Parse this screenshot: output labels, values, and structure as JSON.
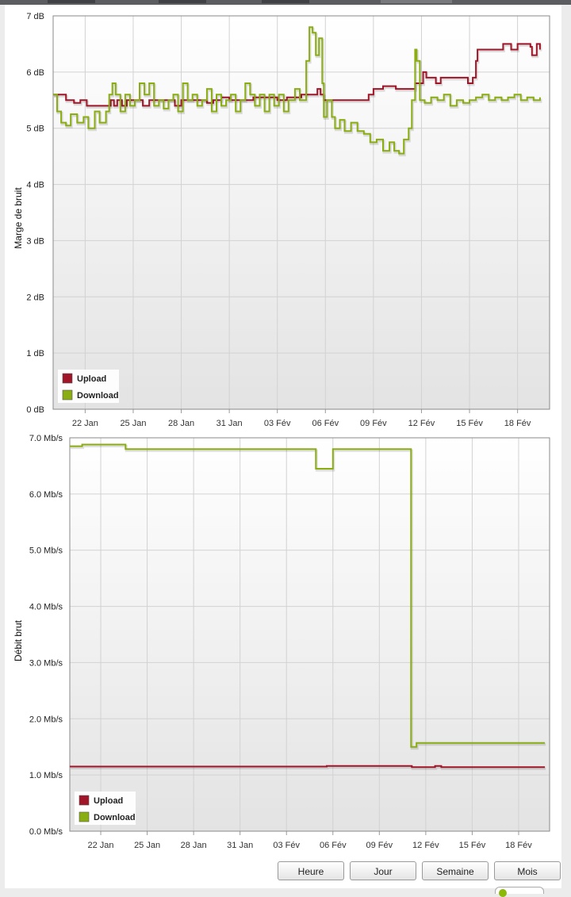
{
  "colors": {
    "upload": "#a01628",
    "download": "#8aad12",
    "grid": "#d2d2d2",
    "plot_border": "#8a8a8a"
  },
  "buttons": {
    "hour": "Heure",
    "day": "Jour",
    "week": "Semaine",
    "month": "Mois"
  },
  "chart_data": [
    {
      "type": "line",
      "ylabel": "Marge de bruit",
      "ylim": [
        0,
        7
      ],
      "yticks": [
        "0 dB",
        "1 dB",
        "2 dB",
        "3 dB",
        "4 dB",
        "5 dB",
        "6 dB",
        "7 dB"
      ],
      "xrange": [
        0,
        31
      ],
      "xticks": [
        {
          "x": 2,
          "label": "22 Jan"
        },
        {
          "x": 5,
          "label": "25 Jan"
        },
        {
          "x": 8,
          "label": "28 Jan"
        },
        {
          "x": 11,
          "label": "31 Jan"
        },
        {
          "x": 14,
          "label": "03 Fév"
        },
        {
          "x": 17,
          "label": "06 Fév"
        },
        {
          "x": 20,
          "label": "09 Fév"
        },
        {
          "x": 23,
          "label": "12 Fév"
        },
        {
          "x": 26,
          "label": "15 Fév"
        },
        {
          "x": 29,
          "label": "18 Fév"
        }
      ],
      "grid": true,
      "legend_position": "bottom-left",
      "series": [
        {
          "name": "Upload",
          "points": [
            [
              0,
              5.6
            ],
            [
              0.7,
              5.6
            ],
            [
              0.8,
              5.5
            ],
            [
              1.2,
              5.5
            ],
            [
              1.3,
              5.45
            ],
            [
              1.6,
              5.45
            ],
            [
              1.7,
              5.5
            ],
            [
              2.0,
              5.5
            ],
            [
              2.1,
              5.4
            ],
            [
              3.5,
              5.4
            ],
            [
              3.6,
              5.5
            ],
            [
              3.8,
              5.4
            ],
            [
              4.0,
              5.5
            ],
            [
              4.3,
              5.4
            ],
            [
              4.6,
              5.5
            ],
            [
              5.5,
              5.5
            ],
            [
              5.6,
              5.4
            ],
            [
              6.0,
              5.5
            ],
            [
              7.5,
              5.5
            ],
            [
              7.6,
              5.4
            ],
            [
              8.0,
              5.5
            ],
            [
              9.5,
              5.5
            ],
            [
              9.6,
              5.45
            ],
            [
              10.0,
              5.5
            ],
            [
              10.5,
              5.55
            ],
            [
              11.0,
              5.5
            ],
            [
              12.5,
              5.55
            ],
            [
              13.5,
              5.55
            ],
            [
              14.0,
              5.5
            ],
            [
              14.6,
              5.55
            ],
            [
              15.5,
              5.6
            ],
            [
              16.5,
              5.7
            ],
            [
              16.7,
              5.6
            ],
            [
              16.9,
              5.5
            ],
            [
              17.0,
              5.5
            ],
            [
              17.1,
              5.5
            ],
            [
              19.5,
              5.5
            ],
            [
              19.7,
              5.6
            ],
            [
              20.0,
              5.7
            ],
            [
              20.5,
              5.7
            ],
            [
              20.6,
              5.75
            ],
            [
              21.2,
              5.75
            ],
            [
              21.4,
              5.7
            ],
            [
              22.5,
              5.7
            ],
            [
              22.6,
              5.8
            ],
            [
              23.0,
              5.8
            ],
            [
              23.1,
              6.0
            ],
            [
              23.3,
              5.9
            ],
            [
              23.5,
              5.9
            ],
            [
              23.7,
              5.9
            ],
            [
              23.9,
              5.8
            ],
            [
              24.2,
              5.9
            ],
            [
              25.8,
              5.9
            ],
            [
              25.9,
              5.8
            ],
            [
              26.2,
              5.9
            ],
            [
              26.4,
              6.2
            ],
            [
              26.5,
              6.4
            ],
            [
              28.0,
              6.4
            ],
            [
              28.1,
              6.5
            ],
            [
              28.6,
              6.4
            ],
            [
              29.0,
              6.5
            ],
            [
              29.8,
              6.45
            ],
            [
              29.9,
              6.3
            ],
            [
              30.2,
              6.5
            ],
            [
              30.4,
              6.4
            ]
          ]
        },
        {
          "name": "Download",
          "points": [
            [
              0,
              5.6
            ],
            [
              0.25,
              5.3
            ],
            [
              0.5,
              5.1
            ],
            [
              0.8,
              5.05
            ],
            [
              1.1,
              5.25
            ],
            [
              1.5,
              5.1
            ],
            [
              1.9,
              5.2
            ],
            [
              2.2,
              5.0
            ],
            [
              2.6,
              5.3
            ],
            [
              2.9,
              5.1
            ],
            [
              3.3,
              5.3
            ],
            [
              3.5,
              5.6
            ],
            [
              3.7,
              5.8
            ],
            [
              3.9,
              5.6
            ],
            [
              4.2,
              5.3
            ],
            [
              4.5,
              5.6
            ],
            [
              4.8,
              5.4
            ],
            [
              5.1,
              5.5
            ],
            [
              5.4,
              5.8
            ],
            [
              5.7,
              5.6
            ],
            [
              6.0,
              5.8
            ],
            [
              6.3,
              5.4
            ],
            [
              6.6,
              5.5
            ],
            [
              6.9,
              5.35
            ],
            [
              7.2,
              5.5
            ],
            [
              7.5,
              5.6
            ],
            [
              7.8,
              5.3
            ],
            [
              8.1,
              5.8
            ],
            [
              8.4,
              5.5
            ],
            [
              8.7,
              5.6
            ],
            [
              9.0,
              5.4
            ],
            [
              9.3,
              5.5
            ],
            [
              9.6,
              5.7
            ],
            [
              9.9,
              5.3
            ],
            [
              10.2,
              5.6
            ],
            [
              10.5,
              5.4
            ],
            [
              10.8,
              5.5
            ],
            [
              11.1,
              5.6
            ],
            [
              11.4,
              5.3
            ],
            [
              11.7,
              5.5
            ],
            [
              12.0,
              5.8
            ],
            [
              12.3,
              5.6
            ],
            [
              12.6,
              5.4
            ],
            [
              12.9,
              5.6
            ],
            [
              13.2,
              5.3
            ],
            [
              13.5,
              5.6
            ],
            [
              13.8,
              5.4
            ],
            [
              14.1,
              5.6
            ],
            [
              14.4,
              5.3
            ],
            [
              14.7,
              5.5
            ],
            [
              15.1,
              5.7
            ],
            [
              15.4,
              5.5
            ],
            [
              15.8,
              6.2
            ],
            [
              16.0,
              6.8
            ],
            [
              16.2,
              6.7
            ],
            [
              16.4,
              6.3
            ],
            [
              16.6,
              6.6
            ],
            [
              16.8,
              5.8
            ],
            [
              16.9,
              5.2
            ],
            [
              17.1,
              5.5
            ],
            [
              17.4,
              5.2
            ],
            [
              17.6,
              5.0
            ],
            [
              17.9,
              5.15
            ],
            [
              18.2,
              4.95
            ],
            [
              18.6,
              5.1
            ],
            [
              19.0,
              4.95
            ],
            [
              19.4,
              4.9
            ],
            [
              19.8,
              4.75
            ],
            [
              20.2,
              4.8
            ],
            [
              20.6,
              4.6
            ],
            [
              21.0,
              4.75
            ],
            [
              21.3,
              4.6
            ],
            [
              21.6,
              4.55
            ],
            [
              21.9,
              4.8
            ],
            [
              22.2,
              5.0
            ],
            [
              22.4,
              5.5
            ],
            [
              22.6,
              6.4
            ],
            [
              22.7,
              6.2
            ],
            [
              22.9,
              5.5
            ],
            [
              23.2,
              5.45
            ],
            [
              23.6,
              5.55
            ],
            [
              24.0,
              5.5
            ],
            [
              24.4,
              5.6
            ],
            [
              24.8,
              5.4
            ],
            [
              25.2,
              5.5
            ],
            [
              25.6,
              5.45
            ],
            [
              26.0,
              5.5
            ],
            [
              26.4,
              5.55
            ],
            [
              26.8,
              5.6
            ],
            [
              27.2,
              5.5
            ],
            [
              27.6,
              5.55
            ],
            [
              28.0,
              5.5
            ],
            [
              28.4,
              5.55
            ],
            [
              28.8,
              5.6
            ],
            [
              29.2,
              5.5
            ],
            [
              29.6,
              5.55
            ],
            [
              30.0,
              5.5
            ],
            [
              30.4,
              5.55
            ]
          ]
        }
      ]
    },
    {
      "type": "line",
      "ylabel": "Débit brut",
      "ylim": [
        0,
        7
      ],
      "yticks": [
        "0.0 Mb/s",
        "1.0 Mb/s",
        "2.0 Mb/s",
        "3.0 Mb/s",
        "4.0 Mb/s",
        "5.0 Mb/s",
        "6.0 Mb/s",
        "7.0 Mb/s"
      ],
      "xrange": [
        0,
        31
      ],
      "xticks": [
        {
          "x": 2,
          "label": "22 Jan"
        },
        {
          "x": 5,
          "label": "25 Jan"
        },
        {
          "x": 8,
          "label": "28 Jan"
        },
        {
          "x": 11,
          "label": "31 Jan"
        },
        {
          "x": 14,
          "label": "03 Fév"
        },
        {
          "x": 17,
          "label": "06 Fév"
        },
        {
          "x": 20,
          "label": "09 Fév"
        },
        {
          "x": 23,
          "label": "12 Fév"
        },
        {
          "x": 26,
          "label": "15 Fév"
        },
        {
          "x": 29,
          "label": "18 Fév"
        }
      ],
      "grid": true,
      "legend_position": "bottom-left",
      "series": [
        {
          "name": "Upload",
          "points": [
            [
              0,
              1.15
            ],
            [
              16.5,
              1.15
            ],
            [
              16.6,
              1.16
            ],
            [
              22.0,
              1.16
            ],
            [
              22.1,
              1.14
            ],
            [
              23.5,
              1.14
            ],
            [
              23.6,
              1.16
            ],
            [
              24.0,
              1.14
            ],
            [
              30.7,
              1.14
            ]
          ]
        },
        {
          "name": "Download",
          "points": [
            [
              0,
              6.85
            ],
            [
              0.7,
              6.85
            ],
            [
              0.8,
              6.88
            ],
            [
              3.5,
              6.88
            ],
            [
              3.6,
              6.8
            ],
            [
              15.8,
              6.8
            ],
            [
              15.9,
              6.45
            ],
            [
              16.9,
              6.45
            ],
            [
              17.0,
              6.8
            ],
            [
              22.0,
              6.8
            ],
            [
              22.05,
              1.5
            ],
            [
              22.3,
              1.5
            ],
            [
              22.4,
              1.57
            ],
            [
              30.7,
              1.57
            ]
          ]
        }
      ]
    }
  ]
}
